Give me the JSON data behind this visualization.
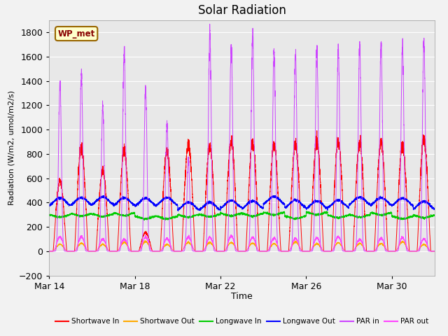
{
  "title": "Solar Radiation",
  "xlabel": "Time",
  "ylabel": "Radiation (W/m2, umol/m2/s)",
  "ylim": [
    -200,
    1900
  ],
  "yticks": [
    -200,
    0,
    200,
    400,
    600,
    800,
    1000,
    1200,
    1400,
    1600,
    1800
  ],
  "legend_labels": [
    "Shortwave In",
    "Shortwave Out",
    "Longwave In",
    "Longwave Out",
    "PAR in",
    "PAR out"
  ],
  "legend_colors": [
    "#ff0000",
    "#ffaa00",
    "#00cc00",
    "#0000ff",
    "#cc44ff",
    "#ff44ff"
  ],
  "box_label": "WP_met",
  "box_facecolor": "#ffffcc",
  "box_edgecolor": "#996600",
  "plot_bg_color": "#e8e8e8",
  "fig_bg_color": "#f2f2f2",
  "grid_color": "#ffffff",
  "num_days": 18,
  "points_per_day": 288,
  "title_fontsize": 12,
  "xtick_positions": [
    0,
    4,
    8,
    12,
    16
  ],
  "xtick_labels": [
    "Mar 14",
    "Mar 18",
    "Mar 22",
    "Mar 26",
    "Mar 30"
  ]
}
